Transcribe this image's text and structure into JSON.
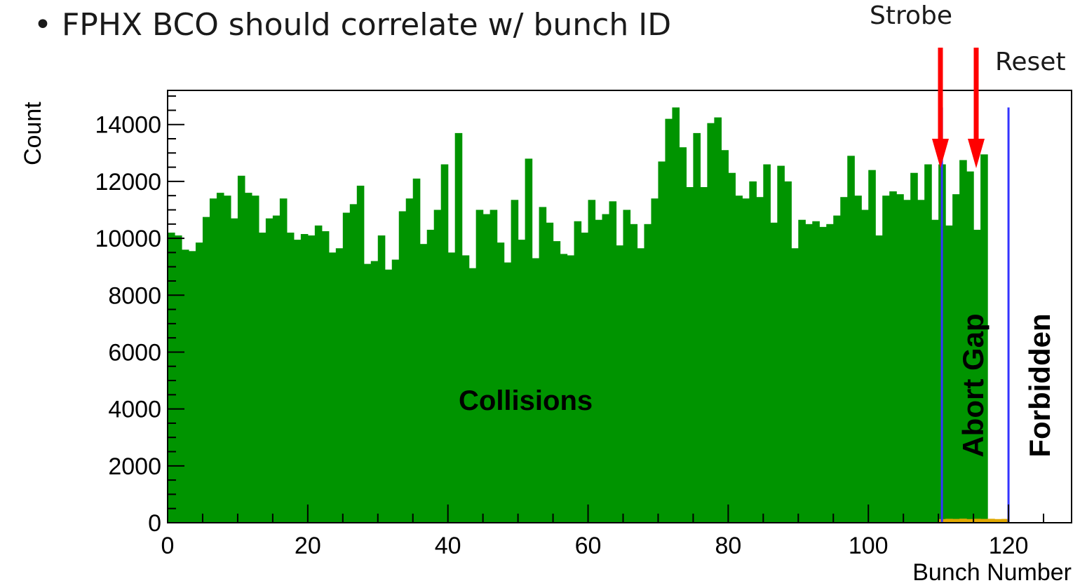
{
  "slide": {
    "bullet_marker": "•",
    "bullet_text": "FPHX BCO should correlate w/ bunch ID",
    "callout_strobe": "Strobe",
    "callout_reset": "Reset"
  },
  "colors": {
    "bars": "#009400",
    "abort_bars": "#e0a800",
    "marker_line": "#3333ff",
    "arrow": "#ff0000",
    "frame": "#000000"
  },
  "chart_data": {
    "type": "bar",
    "title": "",
    "xlabel": "Bunch Number",
    "ylabel": "Count",
    "xlim": [
      0,
      129
    ],
    "ylim": [
      0,
      15200
    ],
    "x_ticks": [
      0,
      20,
      40,
      60,
      80,
      100,
      120
    ],
    "y_ticks": [
      0,
      2000,
      4000,
      6000,
      8000,
      10000,
      12000,
      14000
    ],
    "bin_width": 1,
    "series": [
      {
        "values": [
          10200,
          10100,
          9600,
          9550,
          9850,
          10750,
          11400,
          11600,
          11500,
          10700,
          12200,
          11600,
          11500,
          10200,
          10700,
          10800,
          11400,
          10200,
          9950,
          10150,
          10100,
          10450,
          10250,
          9500,
          9650,
          10900,
          11200,
          11850,
          9100,
          9200,
          10100,
          8900,
          9250,
          10950,
          11400,
          12100,
          9800,
          10300,
          11000,
          12600,
          9500,
          13700,
          9400,
          8950,
          11000,
          10850,
          11000,
          9850,
          9150,
          11350,
          9950,
          12800,
          9300,
          11100,
          10550,
          9900,
          9450,
          9400,
          10600,
          10200,
          11350,
          10650,
          10850,
          11300,
          9750,
          11000,
          10500,
          9650,
          10500,
          11400,
          12700,
          14200,
          14600,
          13200,
          11800,
          13700,
          11800,
          14050,
          14250,
          13100,
          12300,
          11500,
          11400,
          12000,
          11450,
          12600,
          10550,
          12550,
          12000,
          9650,
          10650,
          10500,
          10600,
          10400,
          10500,
          10800,
          11450,
          12900,
          11500,
          11000,
          12400,
          10100,
          11500,
          11650,
          11550,
          11350,
          12300,
          11350,
          12600,
          10650,
          12600,
          10450,
          11550,
          12750,
          12350,
          10300,
          12950
        ]
      },
      {
        "name": "",
        "x_start": 110,
        "values": [
          80,
          90,
          85,
          95,
          80,
          90,
          85,
          90,
          80,
          85
        ]
      }
    ],
    "markers": [
      {
        "x": 110.5,
        "role": "line"
      },
      {
        "x": 120,
        "role": "line"
      }
    ],
    "annotations": [
      "Collisions",
      "Abort Gap",
      "Forbidden"
    ]
  }
}
